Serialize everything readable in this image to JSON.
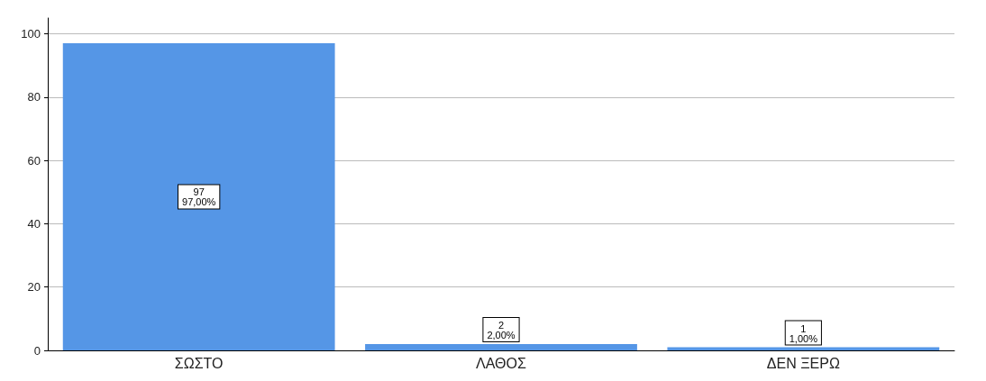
{
  "chart_data": {
    "type": "bar",
    "categories": [
      "ΣΩΣΤΟ",
      "ΛΑΘΟΣ",
      "ΔΕΝ ΞΕΡΩ"
    ],
    "values": [
      97,
      2,
      1
    ],
    "color": "#5596e6",
    "value_labels": [
      "97\n97,00%",
      "2\n2,00%",
      "1\n1,00%"
    ],
    "ylim": [
      0,
      105
    ],
    "yticks": [
      0,
      20,
      40,
      60,
      80,
      100
    ],
    "grid": "y"
  }
}
